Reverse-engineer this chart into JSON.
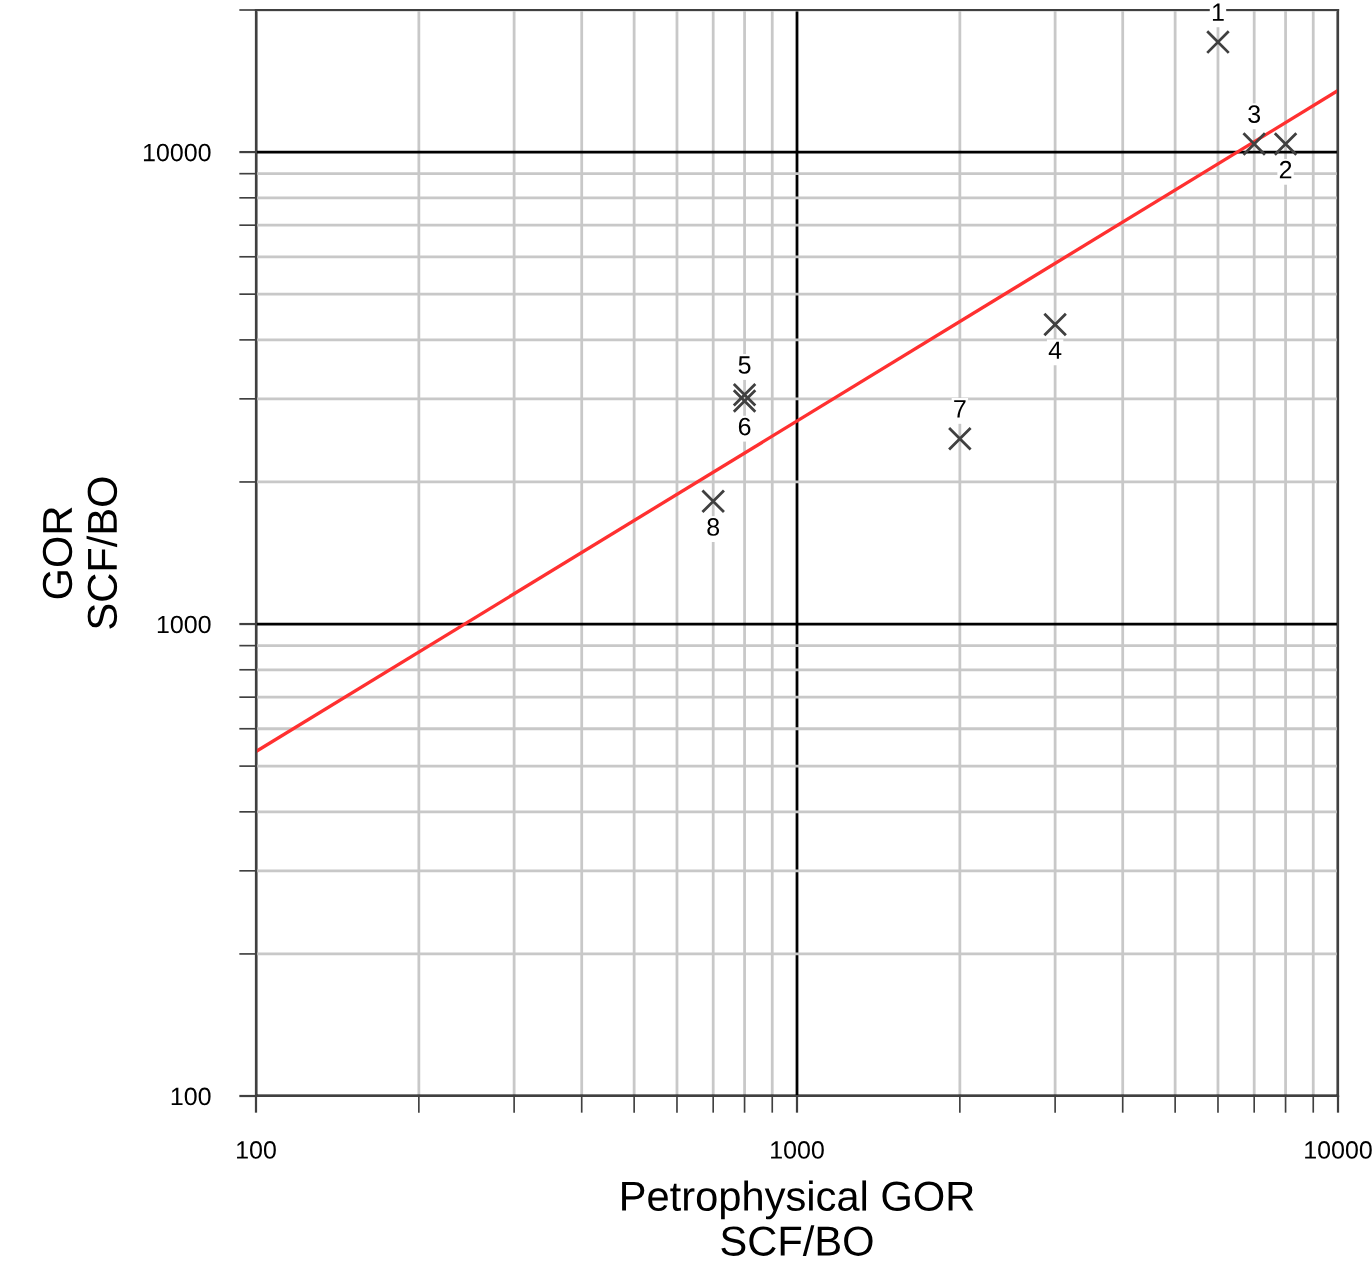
{
  "chart_data": {
    "type": "scatter",
    "xlabel": "Petrophysical GOR\nSCF/BO",
    "ylabel": "GOR\nSCF/BO",
    "log": "xy",
    "grid": true,
    "xlim": [
      100,
      10000
    ],
    "ylim": [
      100,
      20000
    ],
    "xticks": [
      100,
      1000,
      10000
    ],
    "yticks": [
      100,
      1000,
      10000
    ],
    "series": [
      {
        "marker": "cross",
        "color": "#404040",
        "x": [
          6000,
          8000,
          7000,
          3000,
          800,
          800,
          2000,
          700
        ],
        "values": [
          17100,
          10400,
          10400,
          4310,
          3060,
          2970,
          2470,
          1820
        ]
      },
      {
        "type": "line",
        "marker": "none",
        "color": "#ff3030",
        "x": [
          100,
          10000
        ],
        "values": [
          537,
          13500
        ]
      }
    ],
    "annotations": [
      {
        "text": "1",
        "x": 6000,
        "y": 17100
      },
      {
        "text": "2",
        "x": 8000,
        "y": 10400
      },
      {
        "text": "3",
        "x": 7000,
        "y": 10400
      },
      {
        "text": "4",
        "x": 3000,
        "y": 4310
      },
      {
        "text": "5",
        "x": 800,
        "y": 3060
      },
      {
        "text": "6",
        "x": 800,
        "y": 2970
      },
      {
        "text": "7",
        "x": 2000,
        "y": 2470
      },
      {
        "text": "8",
        "x": 700,
        "y": 1820
      }
    ]
  }
}
